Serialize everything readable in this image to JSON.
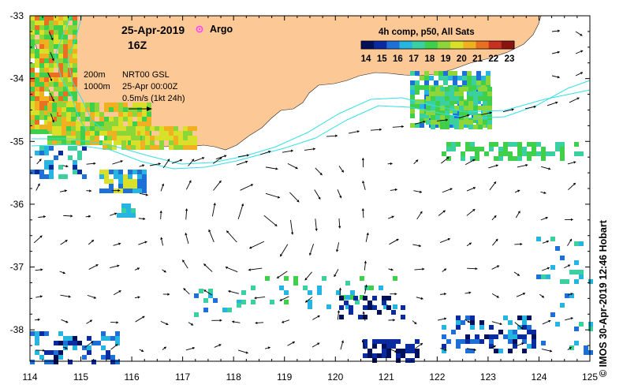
{
  "map": {
    "title": "25-Apr-2019",
    "time": "16Z",
    "argo_label": "Argo",
    "product_label": "4h comp, p50, All Sats",
    "contour_labels": [
      "200m",
      "1000m"
    ],
    "info_lines": [
      "NRT00 GSL",
      "25-Apr 00:00Z",
      "0.5m/s (1kt 24h)"
    ],
    "credit": "© IMOS 30-Apr-2019 12:46 Hobart",
    "colorbar_ticks": [
      "14",
      "15",
      "16",
      "17",
      "18",
      "19",
      "20",
      "21",
      "22",
      "23"
    ],
    "lon_ticks": [
      "114",
      "115",
      "116",
      "117",
      "118",
      "119",
      "120",
      "121",
      "122",
      "123",
      "124",
      "125"
    ],
    "lat_ticks": [
      "-33",
      "-34",
      "-35",
      "-36",
      "-37",
      "-38"
    ],
    "lon_range": [
      114,
      125
    ],
    "lat_range": [
      -33,
      -38.5
    ],
    "colors": {
      "land": "#fcc896",
      "current_arrow": "#000000",
      "contour": "#33e0e6",
      "argo": "#ff44ff",
      "sst_scale": [
        "#000f5a",
        "#0a2aa0",
        "#1e70d6",
        "#25b5e0",
        "#3ad0a0",
        "#3fcf4a",
        "#8cd63a",
        "#d8e02a",
        "#f0b020",
        "#e87020",
        "#c83020",
        "#8a1410"
      ]
    }
  }
}
